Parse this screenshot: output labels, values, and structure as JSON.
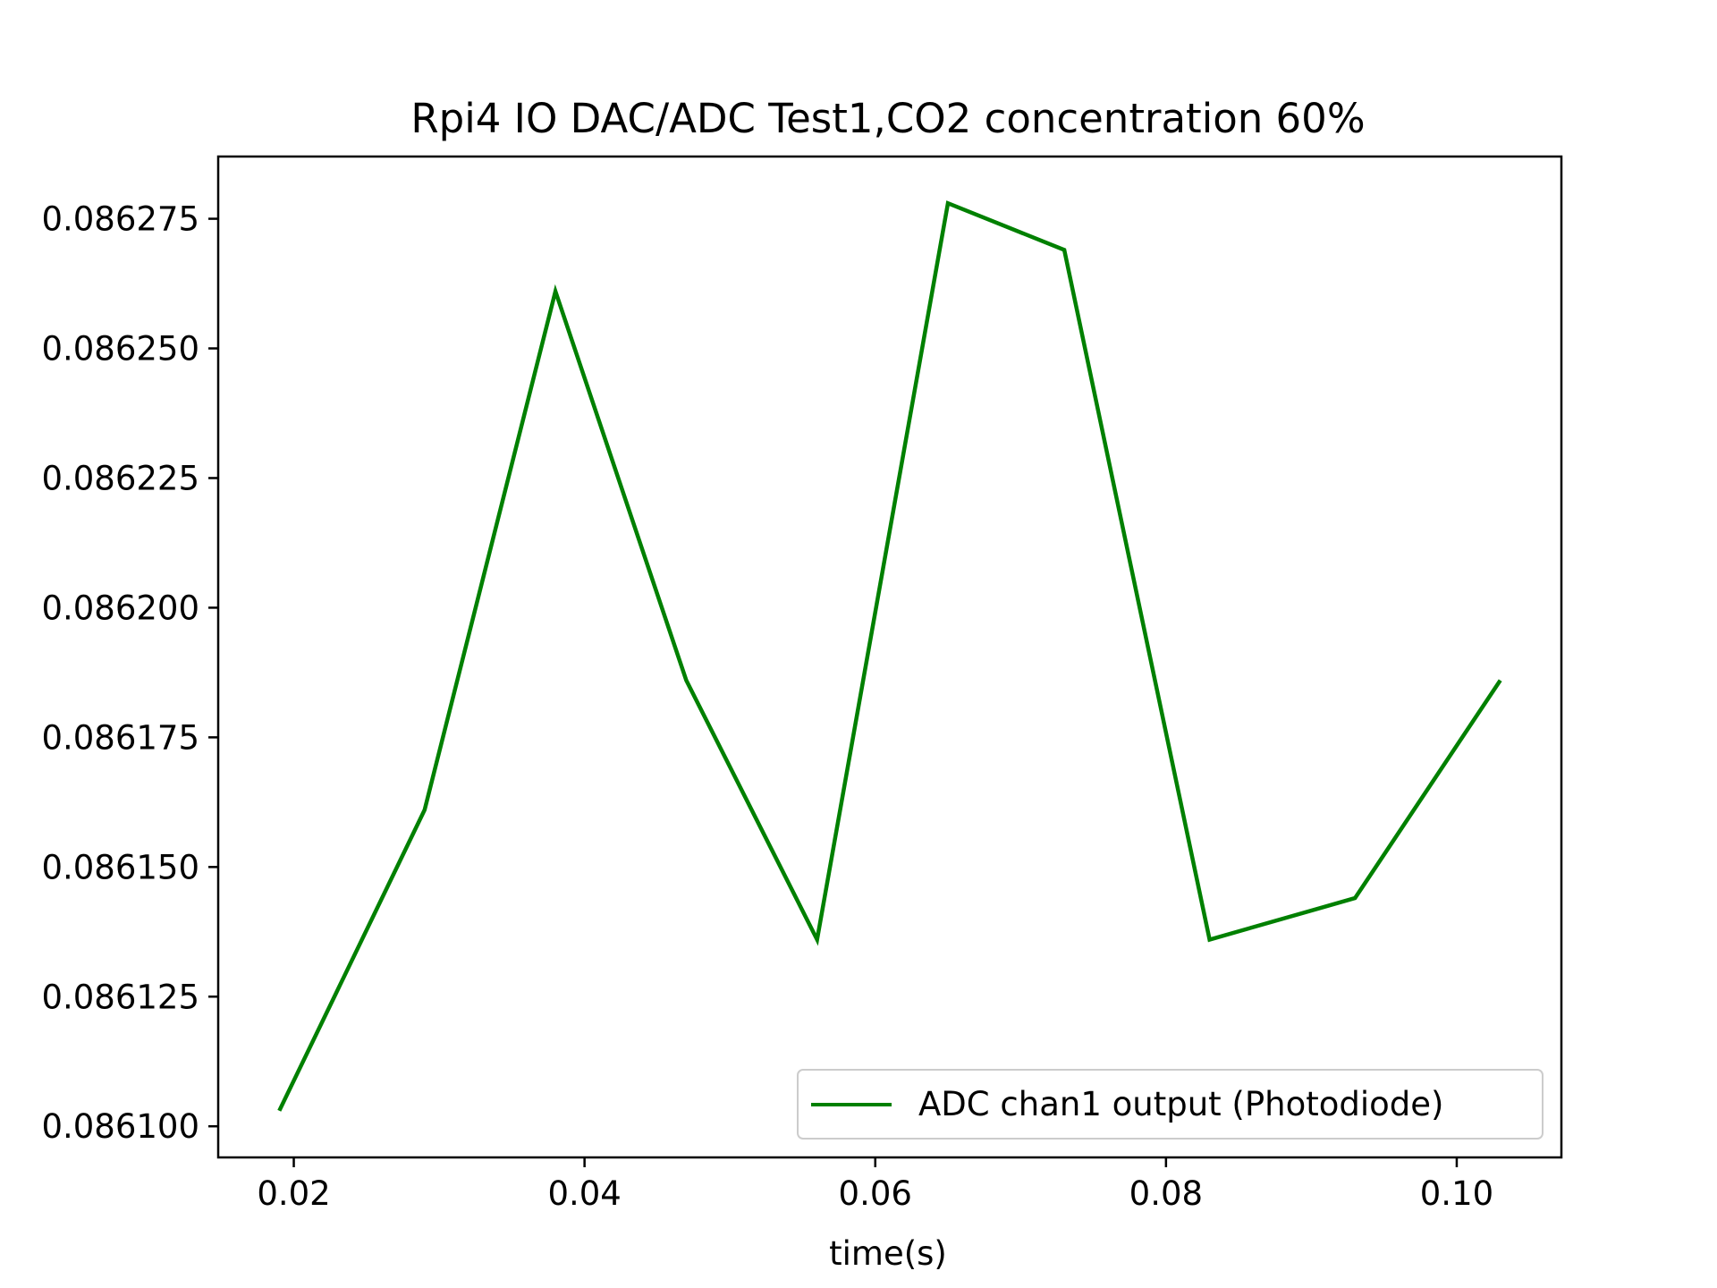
{
  "chart_data": {
    "type": "line",
    "title": "Rpi4 IO DAC/ADC Test1,CO2 concentration 60%",
    "xlabel": "time(s)",
    "ylabel": "",
    "xlim": [
      0.0148,
      0.1072
    ],
    "ylim": [
      0.086094,
      0.086287
    ],
    "x_ticks": [
      0.02,
      0.04,
      0.06,
      0.08,
      0.1
    ],
    "x_tick_labels": [
      "0.02",
      "0.04",
      "0.06",
      "0.08",
      "0.10"
    ],
    "y_ticks": [
      0.0861,
      0.086125,
      0.08615,
      0.086175,
      0.0862,
      0.086225,
      0.08625,
      0.086275
    ],
    "y_tick_labels": [
      "0.086100",
      "0.086125",
      "0.086150",
      "0.086175",
      "0.086200",
      "0.086225",
      "0.086250",
      "0.086275"
    ],
    "grid": false,
    "legend_position": "lower-right",
    "series": [
      {
        "name": "ADC chan1 output  (Photodiode)",
        "color": "#008000",
        "x": [
          0.019,
          0.029,
          0.038,
          0.047,
          0.056,
          0.065,
          0.073,
          0.083,
          0.093,
          0.103
        ],
        "y": [
          0.086103,
          0.086161,
          0.086261,
          0.086186,
          0.086136,
          0.086278,
          0.086269,
          0.086136,
          0.086144,
          0.086186
        ]
      }
    ]
  }
}
